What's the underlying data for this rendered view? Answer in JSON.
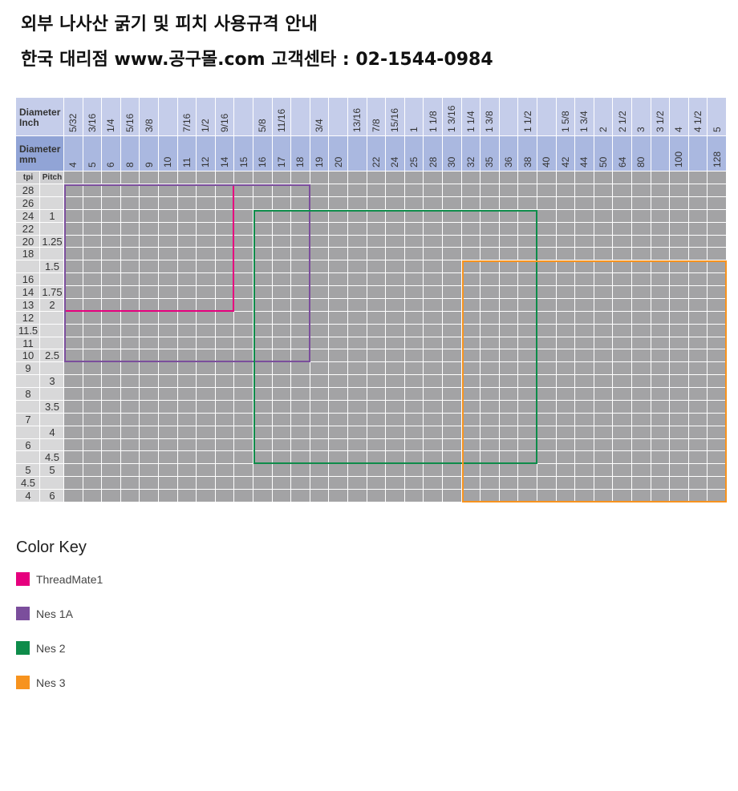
{
  "header": {
    "title": "외부 나사산 굵기 및 피치  사용규격 안내",
    "subtitle": "한국 대리점 www.공구몰.com  고객센타 : 02-1544-0984"
  },
  "chart_data": {
    "type": "table",
    "row_header_labels": {
      "inch": "Diameter Inch",
      "mm": "Diameter mm",
      "tpi": "tpi",
      "pitch": "Pitch"
    },
    "columns": [
      {
        "inch": "5/32",
        "mm": "4"
      },
      {
        "inch": "3/16",
        "mm": "5"
      },
      {
        "inch": "1/4",
        "mm": "6"
      },
      {
        "inch": "5/16",
        "mm": "8"
      },
      {
        "inch": "3/8",
        "mm": "9"
      },
      {
        "inch": "",
        "mm": "10"
      },
      {
        "inch": "7/16",
        "mm": "11"
      },
      {
        "inch": "1/2",
        "mm": "12"
      },
      {
        "inch": "9/16",
        "mm": "14"
      },
      {
        "inch": "",
        "mm": "15"
      },
      {
        "inch": "5/8",
        "mm": "16"
      },
      {
        "inch": "11/16",
        "mm": "17"
      },
      {
        "inch": "",
        "mm": "18"
      },
      {
        "inch": "3/4",
        "mm": "19"
      },
      {
        "inch": "",
        "mm": "20"
      },
      {
        "inch": "13/16",
        "mm": ""
      },
      {
        "inch": "7/8",
        "mm": "22"
      },
      {
        "inch": "15/16",
        "mm": "24"
      },
      {
        "inch": "1",
        "mm": "25"
      },
      {
        "inch": "1 1/8",
        "mm": "28"
      },
      {
        "inch": "1 3/16",
        "mm": "30"
      },
      {
        "inch": "1 1/4",
        "mm": "32"
      },
      {
        "inch": "1 3/8",
        "mm": "35"
      },
      {
        "inch": "",
        "mm": "36"
      },
      {
        "inch": "1 1/2",
        "mm": "38"
      },
      {
        "inch": "",
        "mm": "40"
      },
      {
        "inch": "1 5/8",
        "mm": "42"
      },
      {
        "inch": "1 3/4",
        "mm": "44"
      },
      {
        "inch": "2",
        "mm": "50"
      },
      {
        "inch": "2 1/2",
        "mm": "64"
      },
      {
        "inch": "3",
        "mm": "80"
      },
      {
        "inch": "3 1/2",
        "mm": ""
      },
      {
        "inch": "4",
        "mm": "100"
      },
      {
        "inch": "4 1/2",
        "mm": ""
      },
      {
        "inch": "5",
        "mm": "128"
      }
    ],
    "rows": [
      {
        "tpi": "28",
        "pitch": ""
      },
      {
        "tpi": "26",
        "pitch": ""
      },
      {
        "tpi": "24",
        "pitch": "1"
      },
      {
        "tpi": "22",
        "pitch": ""
      },
      {
        "tpi": "20",
        "pitch": "1.25"
      },
      {
        "tpi": "18",
        "pitch": ""
      },
      {
        "tpi": "",
        "pitch": "1.5"
      },
      {
        "tpi": "16",
        "pitch": ""
      },
      {
        "tpi": "14",
        "pitch": "1.75"
      },
      {
        "tpi": "13",
        "pitch": "2"
      },
      {
        "tpi": "12",
        "pitch": ""
      },
      {
        "tpi": "11.5",
        "pitch": ""
      },
      {
        "tpi": "11",
        "pitch": ""
      },
      {
        "tpi": "10",
        "pitch": "2.5"
      },
      {
        "tpi": "9",
        "pitch": ""
      },
      {
        "tpi": "",
        "pitch": "3"
      },
      {
        "tpi": "8",
        "pitch": ""
      },
      {
        "tpi": "",
        "pitch": "3.5"
      },
      {
        "tpi": "7",
        "pitch": ""
      },
      {
        "tpi": "",
        "pitch": "4"
      },
      {
        "tpi": "6",
        "pitch": ""
      },
      {
        "tpi": "",
        "pitch": "4.5"
      },
      {
        "tpi": "5",
        "pitch": "5"
      },
      {
        "tpi": "4.5",
        "pitch": ""
      },
      {
        "tpi": "4",
        "pitch": "6"
      }
    ],
    "ranges": [
      {
        "name": "ThreadMate1",
        "color": "#e6007e",
        "mm_from": "4",
        "mm_to": "14",
        "tpi_from": "28",
        "tpi_to": "13"
      },
      {
        "name": "Nes 1A",
        "color": "#7b4e9c",
        "mm_from": "4",
        "mm_to": "18",
        "tpi_from": "28",
        "tpi_to": "10"
      },
      {
        "name": "Nes 2",
        "color": "#0e8c4a",
        "mm_from": "16",
        "mm_to": "38",
        "tpi_from": "24",
        "tpi_to": "4.5 (pitch)"
      },
      {
        "name": "Nes 3",
        "color": "#f7931e",
        "mm_from": "32",
        "mm_to": "128",
        "tpi_from": "1.5 (pitch)",
        "tpi_to": "4"
      }
    ],
    "legend_title": "Color Key",
    "legend_placement": "bottom-left"
  }
}
